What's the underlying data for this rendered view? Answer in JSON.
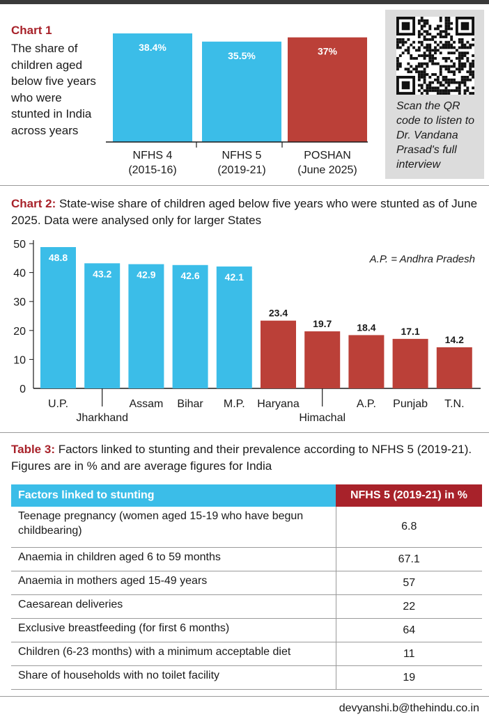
{
  "chart1": {
    "title": "Chart 1",
    "description": "The share of children aged below five years who were stunted in India across years",
    "chart_data": {
      "type": "bar",
      "categories": [
        [
          "NFHS 4",
          "(2015-16)"
        ],
        [
          "NFHS 5",
          "(2019-21)"
        ],
        [
          "POSHAN",
          "(June 2025)"
        ]
      ],
      "values": [
        38.4,
        35.5,
        37
      ],
      "labels": [
        "38.4%",
        "35.5%",
        "37%"
      ],
      "colors": [
        "#3bbde8",
        "#3bbde8",
        "#bb4038"
      ],
      "ylim": [
        0,
        40
      ]
    }
  },
  "qr": {
    "caption": "Scan the QR code to listen to Dr. Vandana Prasad's full interview"
  },
  "chart2": {
    "title": "Chart 2:",
    "description": "State-wise share of children aged below five years who were stunted as of June 2025. Data were analysed only for larger States",
    "note": "A.P. = Andhra Pradesh",
    "chart_data": {
      "type": "bar",
      "categories": [
        "U.P.",
        "Jharkhand",
        "Assam",
        "Bihar",
        "M.P.",
        "Haryana",
        "Himachal",
        "A.P.",
        "Punjab",
        "T.N."
      ],
      "values": [
        48.8,
        43.2,
        42.9,
        42.6,
        42.1,
        23.4,
        19.7,
        18.4,
        17.1,
        14.2
      ],
      "labels": [
        "48.8",
        "43.2",
        "42.9",
        "42.6",
        "42.1",
        "23.4",
        "19.7",
        "18.4",
        "17.1",
        "14.2"
      ],
      "colors": [
        "#3bbde8",
        "#3bbde8",
        "#3bbde8",
        "#3bbde8",
        "#3bbde8",
        "#bb4038",
        "#bb4038",
        "#bb4038",
        "#bb4038",
        "#bb4038"
      ],
      "ylim": [
        0,
        50
      ],
      "yticks": [
        "0",
        "10",
        "20",
        "30",
        "40",
        "50"
      ]
    }
  },
  "table3": {
    "title": "Table 3:",
    "description": "Factors linked to stunting and their prevalence according to NFHS 5 (2019-21). Figures are in % and are average figures for India",
    "col1": "Factors linked to stunting",
    "col2": "NFHS 5 (2019-21) in %",
    "rows": [
      {
        "factor": "Teenage pregnancy (women aged 15-19 who have begun childbearing)",
        "value": "6.8"
      },
      {
        "factor": "Anaemia in children aged 6 to 59 months",
        "value": "67.1"
      },
      {
        "factor": "Anaemia in mothers aged 15-49 years",
        "value": "57"
      },
      {
        "factor": "Caesarean deliveries",
        "value": "22"
      },
      {
        "factor": "Exclusive breastfeeding (for first 6 months)",
        "value": "64"
      },
      {
        "factor": "Children (6-23 months) with a minimum acceptable diet",
        "value": "11"
      },
      {
        "factor": "Share of households with no toilet facility",
        "value": "19"
      }
    ]
  },
  "footer": {
    "email": "devyanshi.b@thehindu.co.in"
  }
}
